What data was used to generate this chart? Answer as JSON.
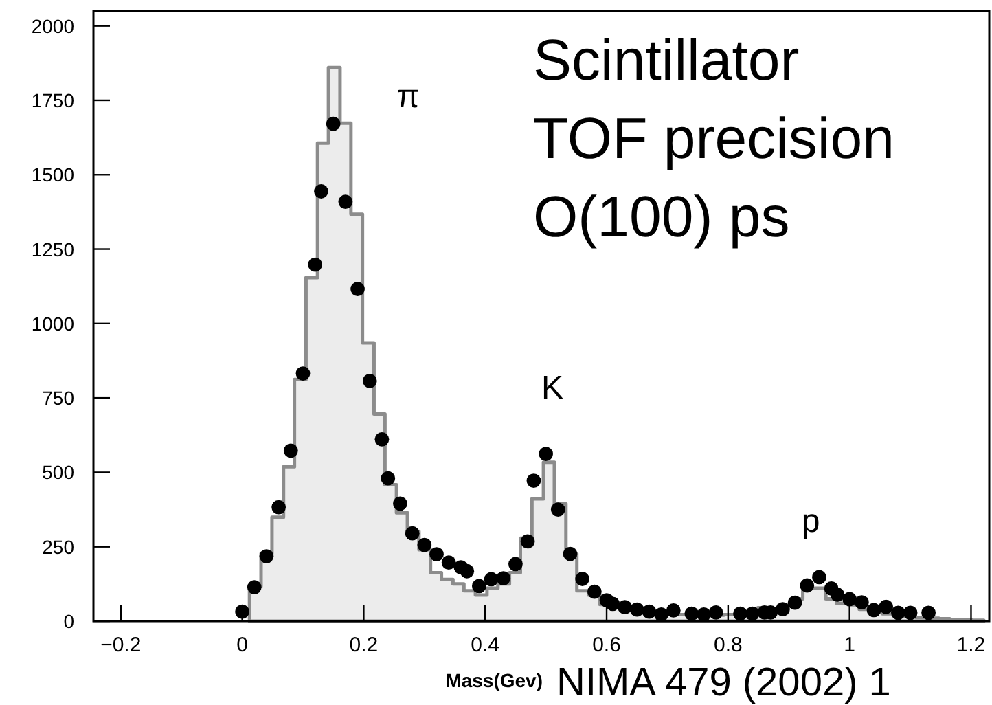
{
  "chart_data": {
    "type": "histogram",
    "xlabel": "Mass(Gev)",
    "xlim": [
      -0.245,
      1.23
    ],
    "ylim": [
      0,
      2050
    ],
    "xticks": [
      {
        "value": -0.2,
        "label": "−0.2"
      },
      0,
      0.2,
      0.4,
      0.6,
      0.8,
      1,
      1.2
    ],
    "yticks": [
      0,
      250,
      500,
      750,
      1000,
      1250,
      1500,
      1750,
      2000
    ],
    "grid": false,
    "series": [
      {
        "color": "#8c8c8c",
        "bins": [
          0.012,
          0.031,
          0.049,
          0.068,
          0.086,
          0.105,
          0.124,
          0.142,
          0.161,
          0.179,
          0.198,
          0.217,
          0.235,
          0.254,
          0.272,
          0.291,
          0.31,
          0.328,
          0.347,
          0.365,
          0.384,
          0.403,
          0.421,
          0.44,
          0.458,
          0.477,
          0.496,
          0.514,
          0.533,
          0.551,
          0.57,
          0.589,
          0.607,
          0.626,
          0.644,
          0.663,
          0.682,
          0.7,
          0.719,
          0.737,
          0.756,
          0.775,
          0.793,
          0.812,
          0.83,
          0.849,
          0.868,
          0.886,
          0.905,
          0.923,
          0.942,
          0.961,
          0.979,
          0.998,
          1.016,
          1.035,
          1.054,
          1.072,
          1.091,
          1.109,
          1.128,
          1.147,
          1.165,
          1.184,
          1.202,
          1.221
        ],
        "values": [
          117,
          227,
          349,
          519,
          812,
          1154,
          1606,
          1860,
          1673,
          1367,
          935,
          696,
          458,
          364,
          302,
          240,
          163,
          140,
          125,
          102,
          88,
          111,
          125,
          163,
          279,
          411,
          534,
          395,
          227,
          102,
          88,
          56,
          45,
          40,
          35,
          30,
          28,
          25,
          22,
          20,
          20,
          20,
          22,
          25,
          30,
          45,
          40,
          55,
          75,
          111,
          111,
          75,
          60,
          55,
          40,
          30,
          25,
          20,
          15,
          12,
          10,
          8,
          6,
          4,
          3
        ]
      },
      {
        "type": "scatter",
        "color": "#000000",
        "marker": "circle",
        "x": [
          0,
          0.02,
          0.04,
          0.06,
          0.08,
          0.1,
          0.12,
          0.13,
          0.15,
          0.17,
          0.19,
          0.21,
          0.23,
          0.24,
          0.26,
          0.28,
          0.3,
          0.32,
          0.34,
          0.36,
          0.37,
          0.39,
          0.41,
          0.43,
          0.45,
          0.47,
          0.48,
          0.5,
          0.52,
          0.54,
          0.56,
          0.58,
          0.6,
          0.61,
          0.63,
          0.65,
          0.67,
          0.69,
          0.71,
          0.74,
          0.76,
          0.78,
          0.82,
          0.84,
          0.86,
          0.87,
          0.89,
          0.91,
          0.93,
          0.95,
          0.97,
          0.98,
          1,
          1.02,
          1.04,
          1.06,
          1.08,
          1.1,
          1.13
        ],
        "values": [
          32,
          114,
          218,
          383,
          573,
          832,
          1198,
          1444,
          1671,
          1409,
          1116,
          807,
          611,
          480,
          395,
          295,
          256,
          225,
          197,
          181,
          168,
          118,
          141,
          144,
          192,
          268,
          472,
          562,
          375,
          226,
          142,
          99,
          70,
          58,
          47,
          39,
          32,
          22,
          36,
          25,
          22,
          29,
          25,
          25,
          29,
          29,
          40,
          62,
          120,
          148,
          110,
          89,
          74,
          63,
          37,
          48,
          28,
          28,
          28
        ]
      }
    ],
    "annotations": [
      "π",
      "K",
      "p",
      "Scintillator\nTOF precision\nO(100) ps",
      "NIMA 479 (2002) 1"
    ]
  }
}
